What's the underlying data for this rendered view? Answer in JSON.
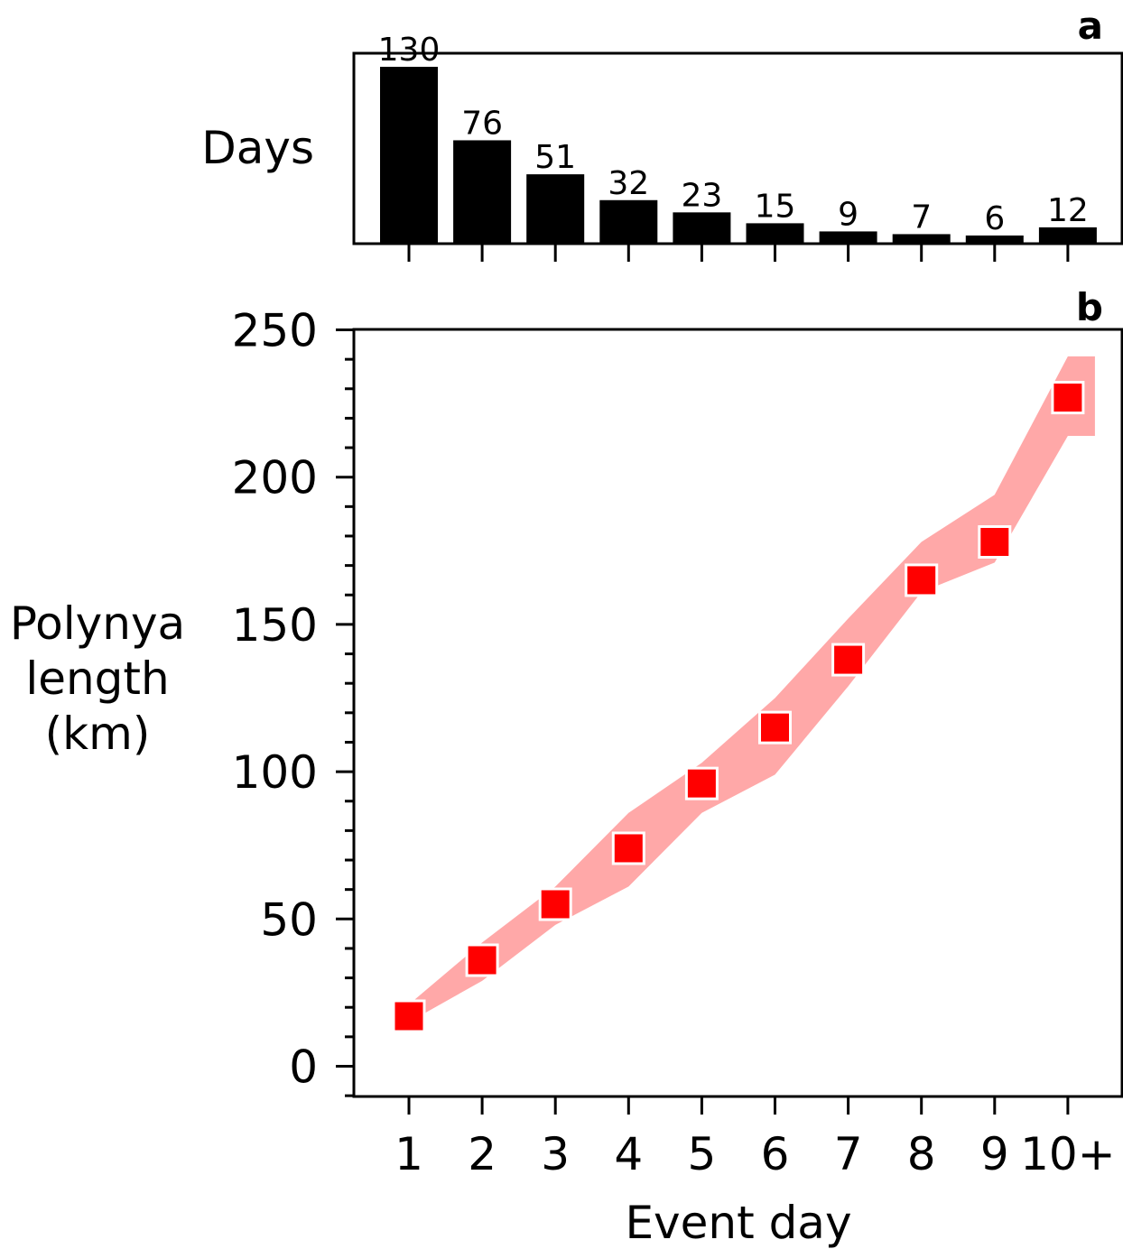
{
  "chart_data": [
    {
      "type": "bar",
      "panel_label": "a",
      "ylabel": "Days",
      "categories": [
        "1",
        "2",
        "3",
        "4",
        "5",
        "6",
        "7",
        "8",
        "9",
        "10+"
      ],
      "values": [
        130,
        76,
        51,
        32,
        23,
        15,
        9,
        7,
        6,
        12
      ],
      "data_labels": [
        "130",
        "76",
        "51",
        "32",
        "23",
        "15",
        "9",
        "7",
        "6",
        "12"
      ],
      "ylim": [
        0,
        140
      ],
      "bar_color": "#000000",
      "grid": false
    },
    {
      "type": "line",
      "panel_label": "b",
      "xlabel": "Event day",
      "ylabel": "Polynya length (km)",
      "ylabel_lines": [
        "Polynya",
        "length",
        "(km)"
      ],
      "categories": [
        "1",
        "2",
        "3",
        "4",
        "5",
        "6",
        "7",
        "8",
        "9",
        "10+"
      ],
      "series": [
        {
          "values": [
            17,
            36,
            55,
            74,
            96,
            115,
            138,
            165,
            178,
            227
          ],
          "lower": [
            15,
            29,
            48,
            61,
            86,
            99,
            129,
            161,
            171,
            214
          ],
          "upper": [
            21,
            42,
            61,
            86,
            103,
            125,
            152,
            178,
            194,
            241
          ],
          "marker": "square",
          "marker_color": "#ff0000",
          "band_color": "#ffa8a8"
        }
      ],
      "ylim": [
        -10,
        260
      ],
      "yticks": [
        0,
        50,
        100,
        150,
        200,
        250
      ],
      "yminor_step": 10,
      "grid": false
    }
  ]
}
